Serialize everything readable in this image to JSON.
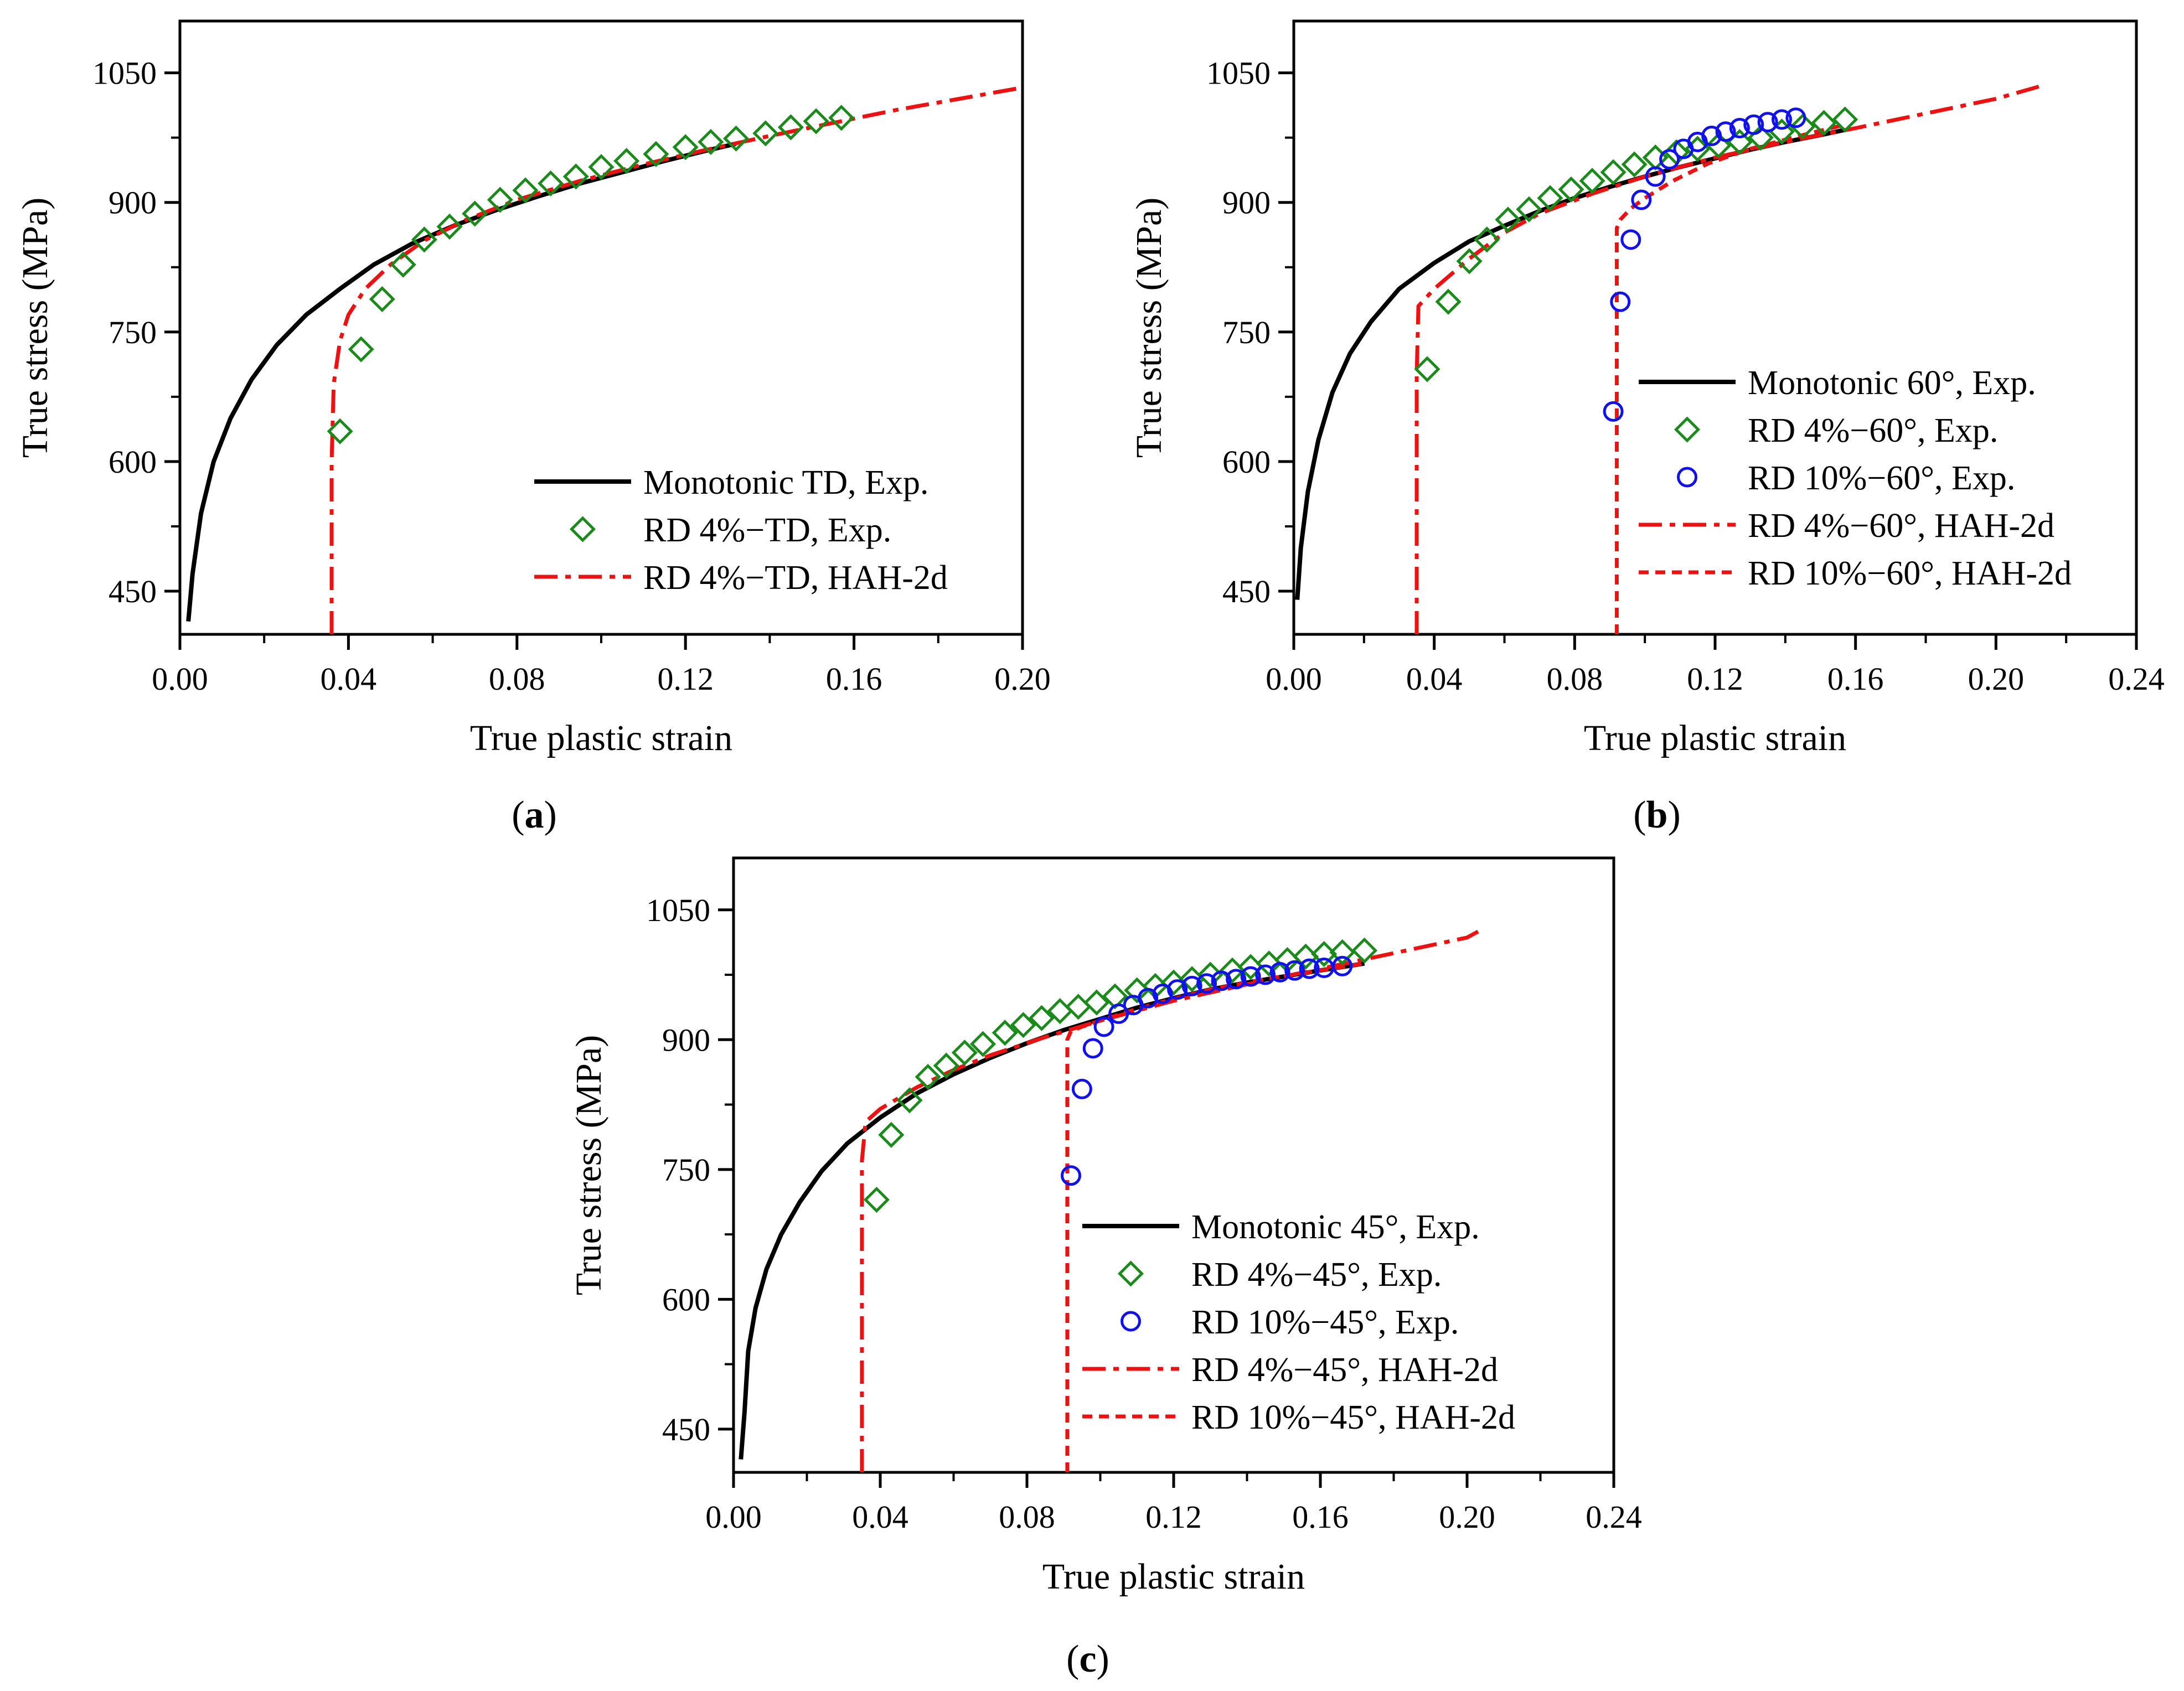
{
  "chart_data": [
    {
      "panel": "a",
      "caption_open": "(",
      "caption_letter": "a",
      "caption_close": ")",
      "type": "line",
      "xlabel": "True plastic strain",
      "ylabel": "True stress (MPa)",
      "xlim": [
        0.0,
        0.2
      ],
      "ylim": [
        400,
        1110
      ],
      "xticks": [
        0.0,
        0.04,
        0.08,
        0.12,
        0.16,
        0.2
      ],
      "xtick_labels": [
        "0.00",
        "0.04",
        "0.08",
        "0.12",
        "0.16",
        "0.20"
      ],
      "yticks": [
        450,
        600,
        750,
        900,
        1050
      ],
      "ytick_labels": [
        "450",
        "600",
        "750",
        "900",
        "1050"
      ],
      "legend_position": "bottom-right",
      "series": [
        {
          "name": "Monotonic TD, Exp.",
          "style": "solid",
          "color": "#000000",
          "x": [
            0.002,
            0.003,
            0.005,
            0.008,
            0.012,
            0.017,
            0.023,
            0.03,
            0.038,
            0.046,
            0.055,
            0.065,
            0.075,
            0.085,
            0.095,
            0.105,
            0.115,
            0.125,
            0.132
          ],
          "y": [
            415,
            470,
            540,
            600,
            650,
            695,
            735,
            770,
            800,
            828,
            852,
            873,
            891,
            907,
            922,
            935,
            948,
            960,
            968
          ]
        },
        {
          "name": "RD 4%−TD, Exp.",
          "style": "diamond",
          "color": "#1a8a1a",
          "x": [
            0.038,
            0.043,
            0.048,
            0.053,
            0.058,
            0.064,
            0.07,
            0.076,
            0.082,
            0.088,
            0.094,
            0.1,
            0.106,
            0.113,
            0.12,
            0.126,
            0.132,
            0.139,
            0.145,
            0.151,
            0.157
          ],
          "y": [
            635,
            730,
            788,
            828,
            857,
            872,
            887,
            903,
            914,
            922,
            930,
            941,
            948,
            956,
            964,
            970,
            974,
            980,
            987,
            994,
            998
          ]
        },
        {
          "name": "RD 4%−TD, HAH-2d",
          "style": "dashdot",
          "color": "#ee1111",
          "x": [
            0.036,
            0.036,
            0.0365,
            0.038,
            0.04,
            0.044,
            0.05,
            0.058,
            0.068,
            0.08,
            0.095,
            0.11,
            0.125,
            0.14,
            0.155,
            0.17,
            0.185,
            0.2
          ],
          "y": [
            400,
            600,
            690,
            740,
            770,
            800,
            828,
            856,
            880,
            903,
            925,
            944,
            961,
            977,
            992,
            1007,
            1020,
            1033
          ]
        }
      ]
    },
    {
      "panel": "b",
      "caption_open": "(",
      "caption_letter": "b",
      "caption_close": ")",
      "type": "line",
      "xlabel": "True plastic strain",
      "ylabel": "True stress (MPa)",
      "xlim": [
        0.0,
        0.24
      ],
      "ylim": [
        400,
        1110
      ],
      "xticks": [
        0.0,
        0.04,
        0.08,
        0.12,
        0.16,
        0.2,
        0.24
      ],
      "xtick_labels": [
        "0.00",
        "0.04",
        "0.08",
        "0.12",
        "0.16",
        "0.20",
        "0.24"
      ],
      "yticks": [
        450,
        600,
        750,
        900,
        1050
      ],
      "ytick_labels": [
        "450",
        "600",
        "750",
        "900",
        "1050"
      ],
      "legend_position": "bottom-right",
      "series": [
        {
          "name": "Monotonic 60°, Exp.",
          "style": "solid",
          "color": "#000000",
          "x": [
            0.001,
            0.002,
            0.004,
            0.007,
            0.011,
            0.016,
            0.022,
            0.03,
            0.04,
            0.05,
            0.06,
            0.07,
            0.08,
            0.09,
            0.1,
            0.11,
            0.12,
            0.13,
            0.14,
            0.15,
            0.157
          ],
          "y": [
            440,
            500,
            565,
            625,
            680,
            725,
            762,
            800,
            830,
            855,
            873,
            890,
            905,
            918,
            930,
            941,
            951,
            961,
            970,
            978,
            984
          ]
        },
        {
          "name": "RD 4%−60°, Exp.",
          "style": "diamond",
          "color": "#1a8a1a",
          "x": [
            0.038,
            0.044,
            0.05,
            0.055,
            0.061,
            0.067,
            0.073,
            0.079,
            0.085,
            0.091,
            0.097,
            0.103,
            0.109,
            0.115,
            0.121,
            0.127,
            0.133,
            0.139,
            0.145,
            0.151,
            0.157
          ],
          "y": [
            707,
            785,
            832,
            857,
            880,
            892,
            905,
            915,
            925,
            935,
            944,
            952,
            958,
            962,
            966,
            970,
            975,
            982,
            988,
            992,
            996
          ]
        },
        {
          "name": "RD 10%−60°, Exp.",
          "style": "circle",
          "color": "#1111ee",
          "x": [
            0.091,
            0.093,
            0.096,
            0.099,
            0.103,
            0.107,
            0.111,
            0.115,
            0.119,
            0.123,
            0.127,
            0.131,
            0.135,
            0.139,
            0.143
          ],
          "y": [
            658,
            785,
            857,
            903,
            930,
            950,
            962,
            970,
            977,
            982,
            986,
            990,
            993,
            996,
            998
          ]
        },
        {
          "name": "RD 4%−60°, HAH-2d",
          "style": "dashdot",
          "color": "#ee1111",
          "x": [
            0.035,
            0.035,
            0.0355,
            0.04,
            0.05,
            0.06,
            0.07,
            0.085,
            0.1,
            0.12,
            0.14,
            0.16,
            0.18,
            0.2,
            0.213
          ],
          "y": [
            400,
            700,
            780,
            800,
            835,
            865,
            887,
            910,
            930,
            952,
            970,
            986,
            1003,
            1020,
            1035
          ]
        },
        {
          "name": "RD 10%−60°, HAH-2d",
          "style": "dashed",
          "color": "#ee1111",
          "x": [
            0.092,
            0.092,
            0.093,
            0.096,
            0.1,
            0.108,
            0.118,
            0.13,
            0.145,
            0.157
          ],
          "y": [
            400,
            870,
            880,
            893,
            905,
            925,
            945,
            962,
            978,
            990
          ]
        }
      ]
    },
    {
      "panel": "c",
      "caption_open": "(",
      "caption_letter": "c",
      "caption_close": ")",
      "type": "line",
      "xlabel": "True plastic strain",
      "ylabel": "True stress (MPa)",
      "xlim": [
        0.0,
        0.24
      ],
      "ylim": [
        400,
        1110
      ],
      "xticks": [
        0.0,
        0.04,
        0.08,
        0.12,
        0.16,
        0.2,
        0.24
      ],
      "xtick_labels": [
        "0.00",
        "0.04",
        "0.08",
        "0.12",
        "0.16",
        "0.20",
        "0.24"
      ],
      "yticks": [
        450,
        600,
        750,
        900,
        1050
      ],
      "ytick_labels": [
        "450",
        "600",
        "750",
        "900",
        "1050"
      ],
      "legend_position": "bottom-right",
      "series": [
        {
          "name": "Monotonic 45°, Exp.",
          "style": "solid",
          "color": "#000000",
          "x": [
            0.002,
            0.003,
            0.004,
            0.006,
            0.009,
            0.013,
            0.018,
            0.024,
            0.031,
            0.04,
            0.05,
            0.06,
            0.07,
            0.08,
            0.09,
            0.1,
            0.11,
            0.12,
            0.13,
            0.14,
            0.15,
            0.16,
            0.172
          ],
          "y": [
            415,
            470,
            540,
            590,
            635,
            675,
            712,
            748,
            780,
            810,
            838,
            860,
            879,
            896,
            911,
            924,
            937,
            948,
            958,
            966,
            973,
            980,
            988
          ]
        },
        {
          "name": "RD 4%−45°, Exp.",
          "style": "diamond",
          "color": "#1a8a1a",
          "x": [
            0.039,
            0.043,
            0.048,
            0.053,
            0.058,
            0.063,
            0.068,
            0.074,
            0.079,
            0.084,
            0.089,
            0.094,
            0.099,
            0.104,
            0.11,
            0.115,
            0.12,
            0.125,
            0.13,
            0.136,
            0.141,
            0.146,
            0.151,
            0.156,
            0.161,
            0.166,
            0.172
          ],
          "y": [
            715,
            790,
            830,
            857,
            870,
            885,
            895,
            908,
            917,
            925,
            933,
            938,
            943,
            950,
            957,
            962,
            966,
            970,
            975,
            980,
            984,
            988,
            992,
            996,
            999,
            1001,
            1003
          ]
        },
        {
          "name": "RD 10%−45°, Exp.",
          "style": "circle",
          "color": "#1111ee",
          "x": [
            0.092,
            0.095,
            0.098,
            0.101,
            0.105,
            0.109,
            0.113,
            0.117,
            0.121,
            0.125,
            0.129,
            0.133,
            0.137,
            0.141,
            0.145,
            0.149,
            0.153,
            0.157,
            0.161,
            0.166
          ],
          "y": [
            743,
            843,
            890,
            915,
            930,
            940,
            948,
            953,
            958,
            962,
            965,
            968,
            970,
            973,
            975,
            978,
            980,
            982,
            983,
            985
          ]
        },
        {
          "name": "RD 4%−45°, HAH-2d",
          "style": "dashdot",
          "color": "#ee1111",
          "x": [
            0.035,
            0.035,
            0.036,
            0.04,
            0.05,
            0.06,
            0.07,
            0.085,
            0.1,
            0.12,
            0.14,
            0.16,
            0.18,
            0.2,
            0.203
          ],
          "y": [
            400,
            760,
            805,
            820,
            845,
            865,
            882,
            903,
            922,
            945,
            964,
            982,
            1000,
            1018,
            1025
          ]
        },
        {
          "name": "RD 10%−45°, HAH-2d",
          "style": "dashed",
          "color": "#ee1111",
          "x": [
            0.091,
            0.091,
            0.092,
            0.095,
            0.1,
            0.108,
            0.118,
            0.13,
            0.145,
            0.16,
            0.172
          ],
          "y": [
            400,
            900,
            910,
            915,
            922,
            933,
            945,
            958,
            970,
            980,
            988
          ]
        }
      ]
    }
  ]
}
